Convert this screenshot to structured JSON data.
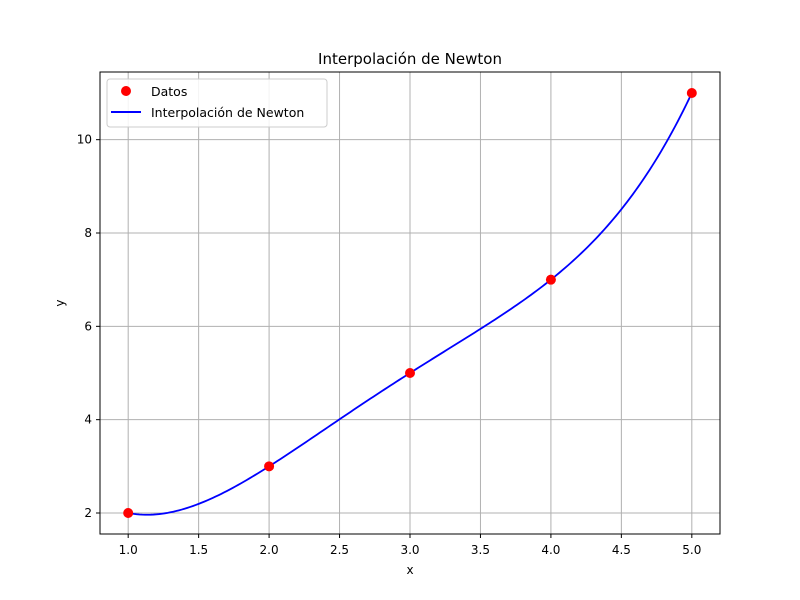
{
  "chart_data": {
    "type": "line",
    "title": "Interpolación de Newton",
    "xlabel": "x",
    "ylabel": "y",
    "xlim": [
      0.8,
      5.2
    ],
    "ylim": [
      1.55,
      11.45
    ],
    "xticks": [
      1.0,
      1.5,
      2.0,
      2.5,
      3.0,
      3.5,
      4.0,
      4.5,
      5.0
    ],
    "xtick_labels": [
      "1.0",
      "1.5",
      "2.0",
      "2.5",
      "3.0",
      "3.5",
      "4.0",
      "4.5",
      "5.0"
    ],
    "yticks": [
      2,
      4,
      6,
      8,
      10
    ],
    "ytick_labels": [
      "2",
      "4",
      "6",
      "8",
      "10"
    ],
    "grid": true,
    "legend_position": "top-left",
    "series": [
      {
        "name": "Datos",
        "kind": "scatter",
        "color": "#ff0000",
        "x": [
          1,
          2,
          3,
          4,
          5
        ],
        "y": [
          2,
          3,
          5,
          7,
          11
        ]
      },
      {
        "name": "Interpolación de Newton",
        "kind": "line",
        "color": "#0000ff",
        "x_range": [
          1,
          5
        ],
        "nodes_x": [
          1,
          2,
          3,
          4,
          5
        ],
        "nodes_y": [
          2,
          3,
          5,
          7,
          11
        ]
      }
    ]
  }
}
